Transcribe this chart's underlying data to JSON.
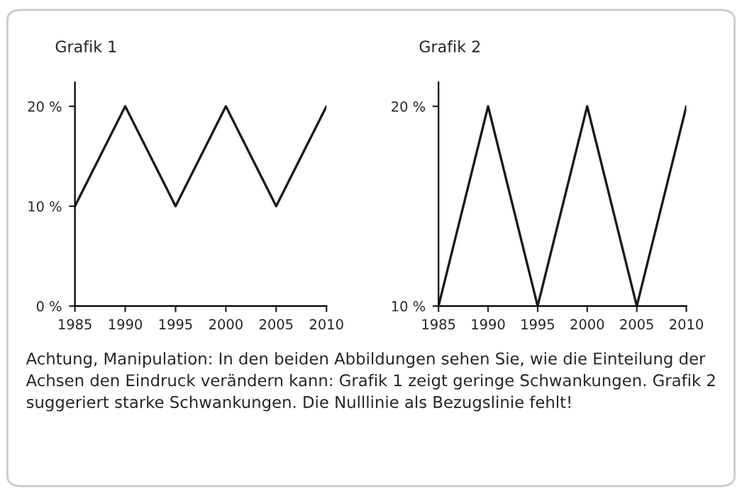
{
  "chart_data": [
    {
      "type": "line",
      "title": "Grafik 1",
      "x": [
        1985,
        1990,
        1995,
        2000,
        2005,
        2010
      ],
      "series": [
        {
          "color": "#1a1a1a",
          "values": [
            10,
            20,
            10,
            20,
            10,
            20
          ]
        }
      ],
      "xlim": [
        1985,
        2010
      ],
      "xticks": [
        1985,
        1990,
        1995,
        2000,
        2005,
        2010
      ],
      "ylim": [
        0,
        22.4
      ],
      "yticks": [
        {
          "value": 0,
          "label": "0 %"
        },
        {
          "value": 10,
          "label": "10 %"
        },
        {
          "value": 20,
          "label": "20 %"
        }
      ],
      "grid": false,
      "legend": false,
      "marker": "none",
      "line_style": "solid",
      "annotations": [
        "Achtung, Manipulation: In den beiden Abbildungen sehen Sie, wie die Einteilung der Achsen den Eindruck verändern kann: Grafik 1 zeigt geringe Schwankungen. Grafik 2 suggeriert starke Schwankungen. Die Nulllinie als Bezugslinie fehlt!"
      ]
    },
    {
      "type": "line",
      "title": "Grafik 2",
      "x": [
        1985,
        1990,
        1995,
        2000,
        2005,
        2010
      ],
      "series": [
        {
          "color": "#1a1a1a",
          "values": [
            10,
            20,
            10,
            20,
            10,
            20
          ]
        }
      ],
      "xlim": [
        1985,
        2010
      ],
      "xticks": [
        1985,
        1990,
        1995,
        2000,
        2005,
        2010
      ],
      "ylim": [
        10,
        21.2
      ],
      "yticks": [
        {
          "value": 10,
          "label": "10 %"
        },
        {
          "value": 20,
          "label": "20 %"
        }
      ],
      "grid": false,
      "legend": false,
      "marker": "none",
      "line_style": "solid"
    }
  ]
}
